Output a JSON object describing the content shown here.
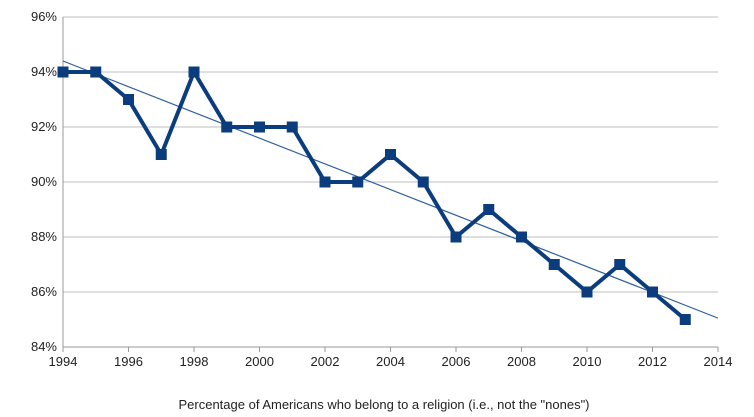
{
  "chart_data": {
    "type": "line",
    "xlabel": "Percentage of Americans who belong to a religion (i.e., not the \"nones\")",
    "xlim": [
      1994,
      2014
    ],
    "ylim": [
      84,
      96
    ],
    "x_ticks": [
      1994,
      1996,
      1998,
      2000,
      2002,
      2004,
      2006,
      2008,
      2010,
      2012,
      2014
    ],
    "x_tick_labels": [
      "1994",
      "1996",
      "1998",
      "2000",
      "2002",
      "2004",
      "2006",
      "2008",
      "2010",
      "2012",
      "2014"
    ],
    "y_ticks": [
      84,
      86,
      88,
      90,
      92,
      94,
      96
    ],
    "y_tick_labels": [
      "84%",
      "86%",
      "88%",
      "90%",
      "92%",
      "94%",
      "96%"
    ],
    "grid": "horizontal",
    "series": [
      {
        "x": [
          1994,
          1995,
          1996,
          1997,
          1998,
          1999,
          2000,
          2001,
          2002,
          2003,
          2004,
          2005,
          2006,
          2007,
          2008,
          2009,
          2010,
          2011,
          2012,
          2013
        ],
        "values": [
          94,
          94,
          93,
          91,
          94,
          92,
          92,
          92,
          90,
          90,
          91,
          90,
          88,
          89,
          88,
          87,
          86,
          87,
          86,
          85
        ],
        "color": "#0b3c7d",
        "marker": "square"
      }
    ],
    "trendline": {
      "type": "linear",
      "x": [
        1994,
        2014
      ],
      "values": [
        94.4,
        85.05
      ],
      "color": "#2e5f9e"
    }
  }
}
